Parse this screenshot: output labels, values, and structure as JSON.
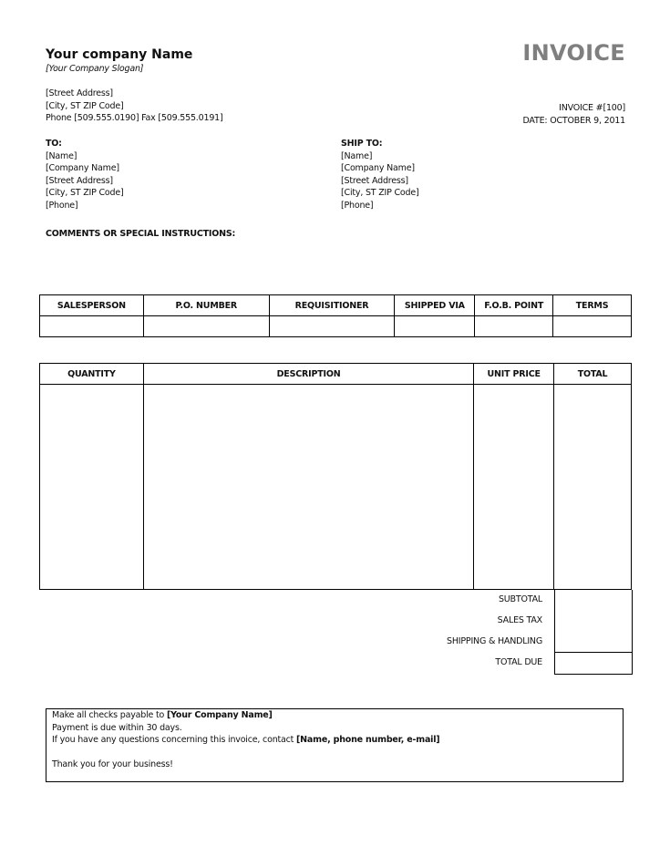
{
  "company": {
    "name": "Your company Name",
    "slogan": "[Your Company Slogan]",
    "street": "[Street Address]",
    "city": "[City, ST  ZIP Code]",
    "phone_fax": "Phone [509.555.0190]  Fax [509.555.0191]"
  },
  "invoice": {
    "title": "INVOICE",
    "number": "INVOICE #[100]",
    "date": "DATE: OCTOBER 9, 2011"
  },
  "to": {
    "label": "TO:",
    "lines": [
      "[Name]",
      "[Company Name]",
      "[Street Address]",
      "[City, ST  ZIP Code]",
      "[Phone]"
    ]
  },
  "ship_to": {
    "label": "SHIP TO:",
    "lines": [
      "[Name]",
      "[Company Name]",
      "[Street Address]",
      "[City, ST  ZIP Code]",
      "[Phone]"
    ]
  },
  "comments_label": "COMMENTS OR SPECIAL INSTRUCTIONS:",
  "order_table": {
    "headers": [
      "SALESPERSON",
      "P.O. NUMBER",
      "REQUISITIONER",
      "SHIPPED VIA",
      "F.O.B. POINT",
      "TERMS"
    ],
    "row": [
      "",
      "",
      "",
      "",
      "",
      ""
    ]
  },
  "items_table": {
    "headers": [
      "QUANTITY",
      "DESCRIPTION",
      "UNIT PRICE",
      "TOTAL"
    ]
  },
  "totals": {
    "subtotal": "SUBTOTAL",
    "sales_tax": "SALES TAX",
    "shipping": "SHIPPING & HANDLING",
    "total_due": "TOTAL DUE"
  },
  "footer": {
    "checks_prefix": "Make all checks payable to ",
    "checks_name": "[Your Company Name]",
    "payment": "Payment is due within 30 days.",
    "questions_prefix": "If you have any questions concerning this invoice, contact ",
    "questions_contact": "[Name, phone number, e-mail]",
    "thanks": "Thank you for your business!"
  }
}
